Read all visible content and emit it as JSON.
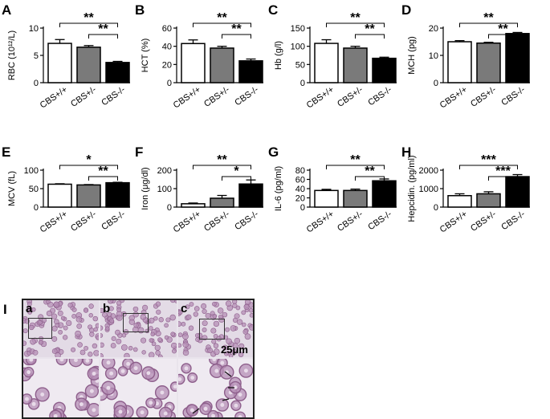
{
  "categories": [
    "CBS+/+",
    "CBS+/-",
    "CBS-/-"
  ],
  "colors": {
    "wt": "#ffffff",
    "het": "#7a7a7a",
    "ko": "#000000"
  },
  "chart_data": [
    {
      "panel": "A",
      "type": "bar",
      "ylabel": "RBC (10¹²/L)",
      "ylim": [
        0,
        10
      ],
      "yticks": [
        "0",
        "5",
        "10"
      ],
      "yticks_values": [
        0,
        5,
        10
      ],
      "values": [
        7.2,
        6.5,
        3.7
      ],
      "errors": [
        0.7,
        0.3,
        0.2
      ],
      "significance": [
        {
          "from": 0,
          "to": 2,
          "label": "**"
        },
        {
          "from": 1,
          "to": 2,
          "label": "**"
        }
      ]
    },
    {
      "panel": "B",
      "type": "bar",
      "ylabel": "HCT (%)",
      "ylim": [
        0,
        60
      ],
      "yticks": [
        "0",
        "20",
        "40",
        "60"
      ],
      "yticks_values": [
        0,
        20,
        40,
        60
      ],
      "values": [
        43,
        38,
        24
      ],
      "errors": [
        4,
        2,
        2
      ],
      "significance": [
        {
          "from": 0,
          "to": 2,
          "label": "**"
        },
        {
          "from": 1,
          "to": 2,
          "label": "**"
        }
      ]
    },
    {
      "panel": "C",
      "type": "bar",
      "ylabel": "Hb (g/l)",
      "ylim": [
        0,
        150
      ],
      "yticks": [
        "0",
        "50",
        "100",
        "150"
      ],
      "yticks_values": [
        0,
        50,
        100,
        150
      ],
      "values": [
        108,
        95,
        67
      ],
      "errors": [
        10,
        5,
        3
      ],
      "significance": [
        {
          "from": 0,
          "to": 2,
          "label": "**"
        },
        {
          "from": 1,
          "to": 2,
          "label": "**"
        }
      ]
    },
    {
      "panel": "D",
      "type": "bar",
      "ylabel": "MCH (pg)",
      "ylim": [
        0,
        20
      ],
      "yticks": [
        "0",
        "10",
        "20"
      ],
      "yticks_values": [
        0,
        10,
        20
      ],
      "values": [
        15,
        14.5,
        18
      ],
      "errors": [
        0.4,
        0.3,
        0.4
      ],
      "significance": [
        {
          "from": 0,
          "to": 2,
          "label": "**"
        },
        {
          "from": 1,
          "to": 2,
          "label": "**"
        }
      ]
    },
    {
      "panel": "E",
      "type": "bar",
      "ylabel": "MCV (fL)",
      "ylim": [
        0,
        100
      ],
      "yticks": [
        "0",
        "50",
        "100"
      ],
      "yticks_values": [
        0,
        50,
        100
      ],
      "values": [
        62,
        60,
        66
      ],
      "errors": [
        1.2,
        1,
        1.2
      ],
      "significance": [
        {
          "from": 0,
          "to": 2,
          "label": "*"
        },
        {
          "from": 1,
          "to": 2,
          "label": "**"
        }
      ]
    },
    {
      "panel": "F",
      "type": "bar",
      "ylabel": "Iron (μg/dl)",
      "ylim": [
        0,
        200
      ],
      "yticks": [
        "0",
        "100",
        "200"
      ],
      "yticks_values": [
        0,
        100,
        200
      ],
      "values": [
        18,
        48,
        125
      ],
      "errors": [
        4,
        15,
        22
      ],
      "significance": [
        {
          "from": 0,
          "to": 2,
          "label": "**"
        },
        {
          "from": 1,
          "to": 2,
          "label": "*"
        }
      ]
    },
    {
      "panel": "G",
      "type": "bar",
      "ylabel": "IL-6 (pg/ml)",
      "ylim": [
        0,
        80
      ],
      "yticks": [
        "0",
        "20",
        "40",
        "60",
        "80"
      ],
      "yticks_values": [
        0,
        20,
        40,
        60,
        80
      ],
      "values": [
        36,
        36,
        57
      ],
      "errors": [
        2.5,
        3,
        4
      ],
      "significance": [
        {
          "from": 0,
          "to": 2,
          "label": "**"
        },
        {
          "from": 1,
          "to": 2,
          "label": "**"
        }
      ]
    },
    {
      "panel": "H",
      "type": "bar",
      "ylabel": "Hepcidin. (pg/ml)",
      "ylim": [
        0,
        2000
      ],
      "yticks": [
        "0",
        "1000",
        "2000"
      ],
      "yticks_values": [
        0,
        1000,
        2000
      ],
      "values": [
        620,
        720,
        1650
      ],
      "errors": [
        100,
        110,
        110
      ],
      "significance": [
        {
          "from": 0,
          "to": 2,
          "label": "***"
        },
        {
          "from": 1,
          "to": 2,
          "label": "***"
        }
      ]
    }
  ],
  "micrograph": {
    "panel_label": "I",
    "sublabels": [
      "a",
      "b",
      "c"
    ],
    "scale_bar": "25μm"
  }
}
